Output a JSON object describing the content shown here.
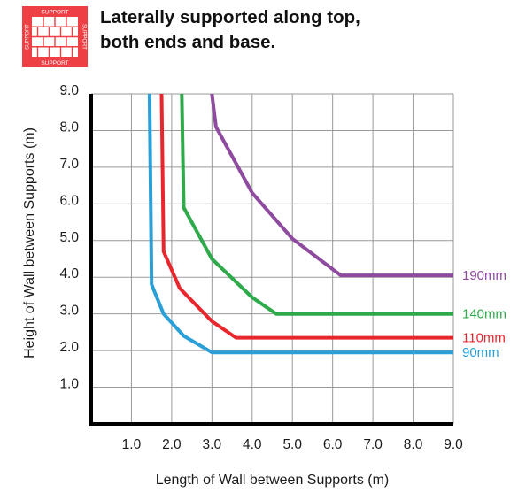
{
  "header": {
    "title_line1": "Laterally supported along top,",
    "title_line2": "both ends and base.",
    "icon": {
      "name": "wall-support-icon",
      "color": "#ee3f45",
      "label_top": "SUPPORT",
      "label_bottom": "SUPPORT",
      "label_left": "SUPPORT",
      "label_right": "SUPPORT"
    }
  },
  "chart_data": {
    "type": "line",
    "title": "",
    "xlabel": "Length of Wall between Supports (m)",
    "ylabel": "Height of Wall between Supports (m)",
    "xlim": [
      0,
      9
    ],
    "ylim": [
      0,
      9
    ],
    "x_ticks": [
      "1.0",
      "2.0",
      "3.0",
      "4.0",
      "5.0",
      "6.0",
      "7.0",
      "8.0",
      "9.0"
    ],
    "y_ticks": [
      "1.0",
      "2.0",
      "3.0",
      "4.0",
      "5.0",
      "6.0",
      "7.0",
      "8.0",
      "9.0"
    ],
    "grid": true,
    "series": [
      {
        "name": "90mm",
        "color": "#2a9fd8",
        "points": [
          [
            1.45,
            9.0
          ],
          [
            1.5,
            3.8
          ],
          [
            1.8,
            3.0
          ],
          [
            2.3,
            2.4
          ],
          [
            3.0,
            1.95
          ],
          [
            9.0,
            1.95
          ]
        ]
      },
      {
        "name": "110mm",
        "color": "#e8262d",
        "points": [
          [
            1.75,
            9.0
          ],
          [
            1.8,
            4.7
          ],
          [
            2.2,
            3.7
          ],
          [
            3.0,
            2.8
          ],
          [
            3.6,
            2.35
          ],
          [
            9.0,
            2.35
          ]
        ]
      },
      {
        "name": "140mm",
        "color": "#2eaa4a",
        "points": [
          [
            2.25,
            9.0
          ],
          [
            2.3,
            5.9
          ],
          [
            3.0,
            4.5
          ],
          [
            4.0,
            3.45
          ],
          [
            4.6,
            3.0
          ],
          [
            9.0,
            3.0
          ]
        ]
      },
      {
        "name": "190mm",
        "color": "#8e4a9e",
        "points": [
          [
            3.0,
            9.0
          ],
          [
            3.1,
            8.1
          ],
          [
            4.0,
            6.3
          ],
          [
            5.0,
            5.05
          ],
          [
            6.2,
            4.05
          ],
          [
            9.0,
            4.05
          ]
        ]
      }
    ]
  }
}
